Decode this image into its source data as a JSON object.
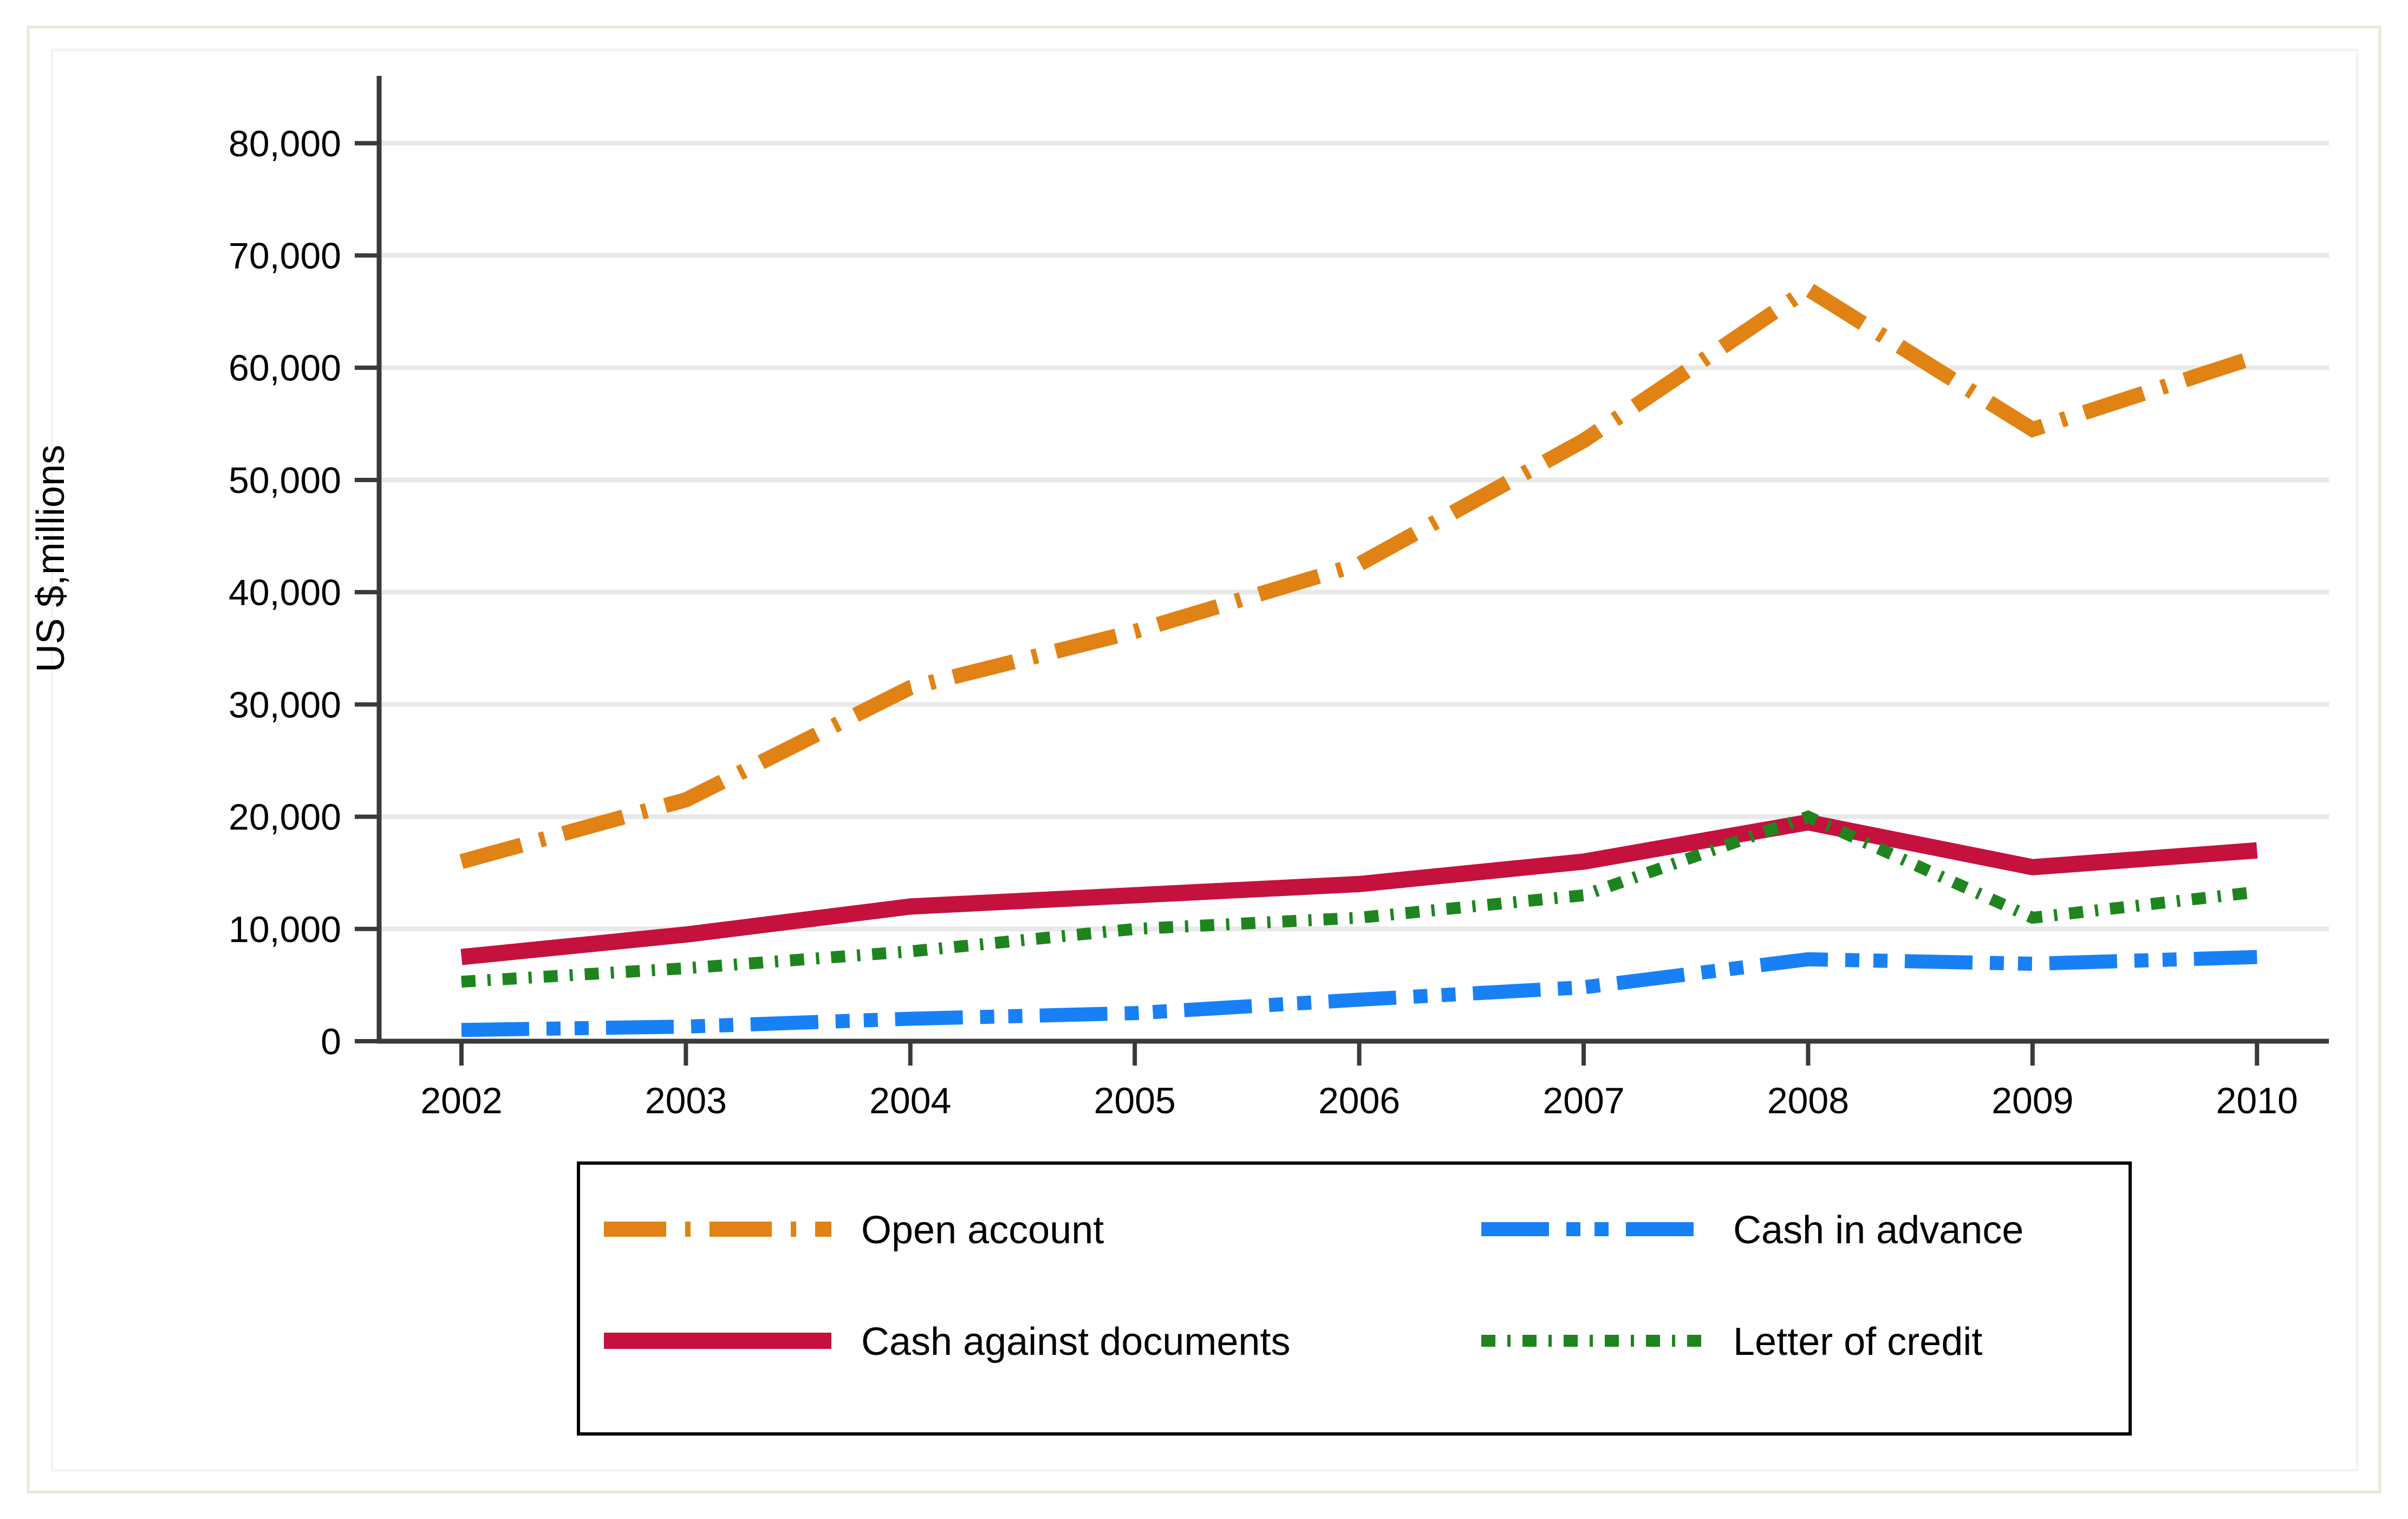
{
  "figure": {
    "background": "#FFFFFF",
    "outer_border_color": "#ECE7D8",
    "inner_edge_color": "#F3F3EF"
  },
  "chart_data": {
    "type": "line",
    "title": "",
    "xlabel": "",
    "ylabel": "US $,millions",
    "x": [
      2002,
      2003,
      2004,
      2005,
      2006,
      2007,
      2008,
      2009,
      2010
    ],
    "x_tick_labels": [
      "2002",
      "2003",
      "2004",
      "2005",
      "2006",
      "2007",
      "2008",
      "2009",
      "2010"
    ],
    "y_ticks": [
      0,
      10000,
      20000,
      30000,
      40000,
      50000,
      60000,
      70000,
      80000
    ],
    "y_tick_labels": [
      "0",
      "10,000",
      "20,000",
      "30,000",
      "40,000",
      "50,000",
      "60,000",
      "70,000",
      "80,000"
    ],
    "ylim": [
      0,
      86000
    ],
    "grid": true,
    "legend_position": "bottom",
    "axis_color": "#3A3A3A",
    "grid_color": "#E9E9E9",
    "text_color": "#000000",
    "series": [
      {
        "name": "Open account",
        "color": "#E08214",
        "dash": [
          115,
          35,
          10,
          35
        ],
        "width": 28,
        "values": [
          16000,
          21500,
          31500,
          36500,
          42500,
          53500,
          67000,
          54500,
          61000
        ]
      },
      {
        "name": "Cash in advance",
        "color": "#1880F5",
        "dash": [
          125,
          32,
          26,
          26,
          26,
          32
        ],
        "width": 26,
        "values": [
          1000,
          1300,
          2000,
          2500,
          3700,
          4800,
          7300,
          6900,
          7500
        ]
      },
      {
        "name": "Cash against documents",
        "color": "#C4113E",
        "dash": [],
        "width": 30,
        "values": [
          7500,
          9500,
          12000,
          13000,
          14000,
          16000,
          19500,
          15500,
          17000
        ]
      },
      {
        "name": "Letter of credit",
        "color": "#1E851E",
        "dash": [
          26,
          22,
          6,
          22
        ],
        "width": 22,
        "values": [
          5300,
          6500,
          8000,
          10000,
          11000,
          13000,
          20000,
          11000,
          13300
        ]
      }
    ],
    "legend": {
      "entries": [
        "Open account",
        "Cash in advance",
        "Cash against documents",
        "Letter of credit"
      ],
      "columns": 2
    }
  }
}
